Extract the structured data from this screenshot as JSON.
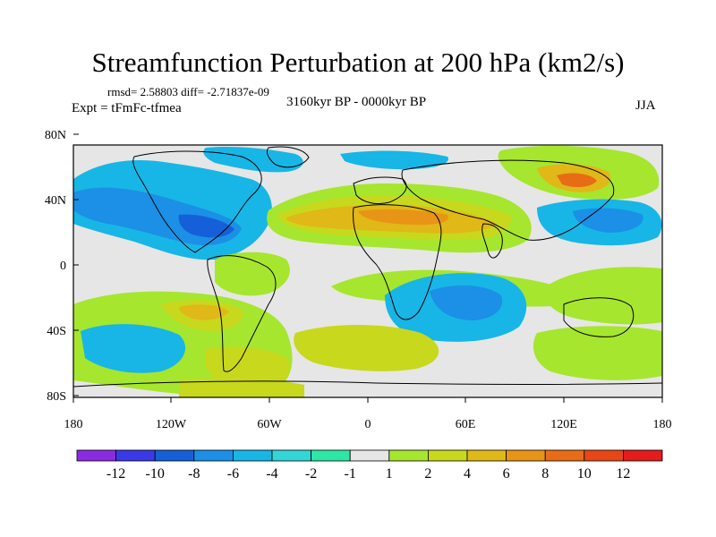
{
  "title": "Streamfunction Perturbation at 200 hPa (km2/s)",
  "stats": "rmsd= 2.58803 diff= -2.71837e-09",
  "experiment": "Expt = tFmFc-tfmea",
  "period": "3160kyr BP - 0000kyr BP",
  "season": "JJA",
  "axes": {
    "lat_ticks": [
      "80N",
      "40N",
      "0",
      "40S",
      "80S"
    ],
    "lon_ticks": [
      "180",
      "120W",
      "60W",
      "0",
      "60E",
      "120E",
      "180"
    ]
  },
  "colorbar": {
    "colors": [
      "#8a2be2",
      "#3a3ae8",
      "#1560d8",
      "#1b90e6",
      "#17b6e6",
      "#33d6d6",
      "#2ee6a6",
      "#e6e6e6",
      "#a6e62e",
      "#c8d81c",
      "#e0b818",
      "#e89416",
      "#e86c16",
      "#e84616",
      "#e41c1c"
    ],
    "labels": [
      "-12",
      "-10",
      "-8",
      "-6",
      "-4",
      "-2",
      "-1",
      "1",
      "2",
      "4",
      "6",
      "8",
      "10",
      "12"
    ]
  },
  "palette": {
    "ocean": "#e6e6e6",
    "neg1": "#17b6e6",
    "neg2": "#1b90e6",
    "neg3": "#1560d8",
    "pos1": "#a6e62e",
    "pos2": "#c8d81c",
    "pos3": "#e0b818",
    "pos4": "#e89416",
    "pos5": "#e86c16",
    "coast": "#000000"
  }
}
